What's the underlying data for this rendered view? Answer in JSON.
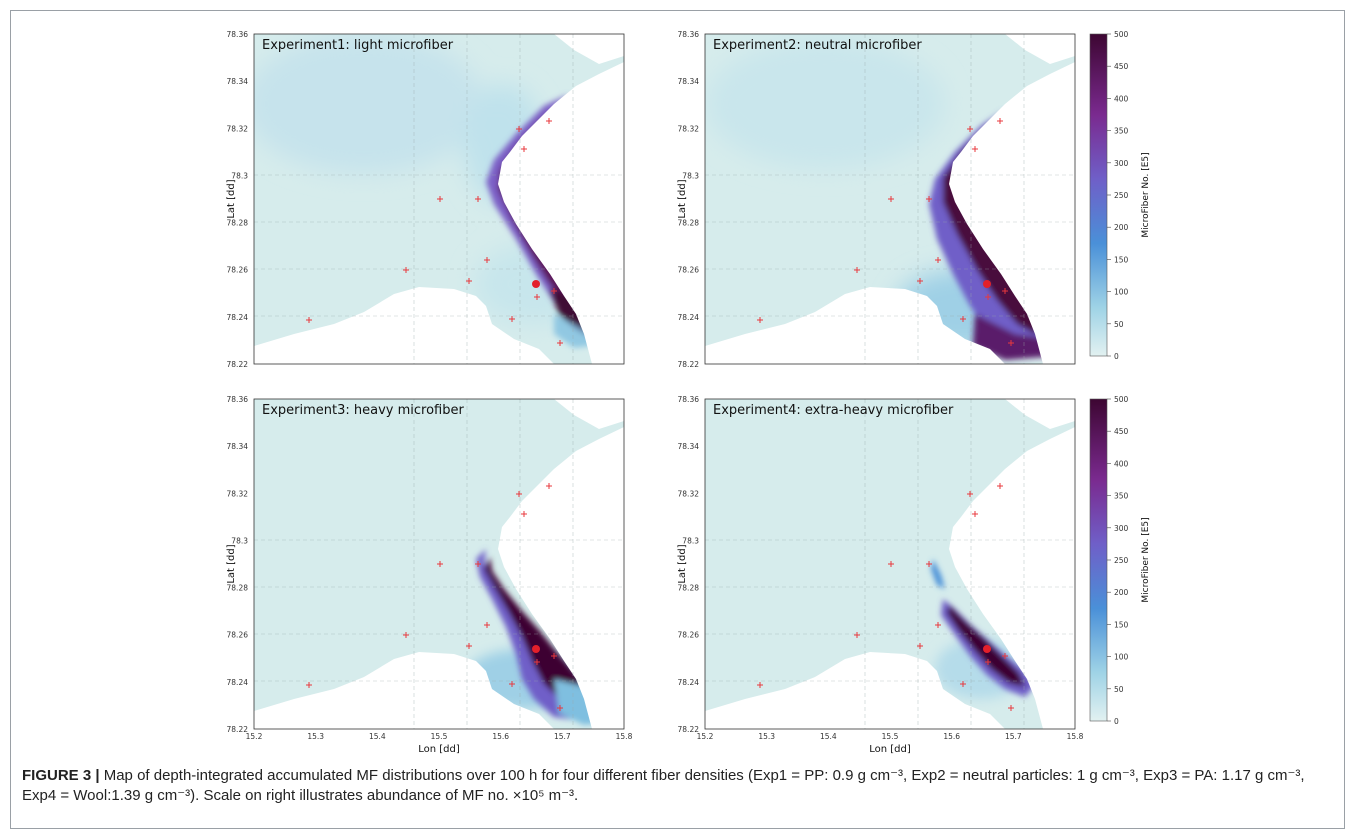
{
  "figure": {
    "panels": [
      {
        "title": "Experiment1: light microfiber"
      },
      {
        "title": "Experiment2: neutral microfiber"
      },
      {
        "title": "Experiment3: heavy microfiber"
      },
      {
        "title": "Experiment4: extra-heavy microfiber"
      }
    ],
    "lat_ticks": [
      "78.36",
      "78.34",
      "78.32",
      "78.3",
      "78.28",
      "78.26",
      "78.24",
      "78.22"
    ],
    "lon_ticks": [
      "15.2",
      "15.3",
      "15.4",
      "15.5",
      "15.6",
      "15.7",
      "15.8"
    ],
    "xlabel": "Lon [dd]",
    "ylabel": "Lat [dd]",
    "colorbar": {
      "label": "MicroFiber No. [E5]",
      "ticks": [
        "500",
        "450",
        "400",
        "350",
        "300",
        "250",
        "200",
        "150",
        "100",
        "50",
        "0"
      ],
      "range": [
        0,
        500
      ],
      "colors": [
        "#e2f1f1",
        "#7fc4df",
        "#4a90d8",
        "#6f5fc8",
        "#7a2a8f",
        "#4a0a3c"
      ]
    },
    "colors": {
      "land": "#ffffff",
      "sea_background": "#d9ecec",
      "station_marker": "#e8383d",
      "source_marker": "#e3202b"
    }
  },
  "caption": {
    "label": "FIGURE 3 |",
    "text": "Map of depth-integrated accumulated MF distributions over 100 h for four different fiber densities (Exp1 = PP: 0.9 g cm⁻³, Exp2 = neutral particles: 1 g cm⁻³, Exp3 = PA: 1.17 g cm⁻³, Exp4 = Wool:1.39 g cm⁻³). Scale on right illustrates abundance of MF no. ×10⁵ m⁻³."
  }
}
